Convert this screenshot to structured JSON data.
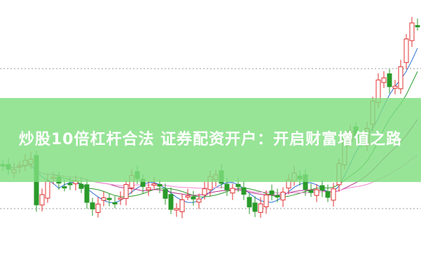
{
  "title": "炒股10倍杠杆合法 证券配资开户：开启财富增值之路"
}
